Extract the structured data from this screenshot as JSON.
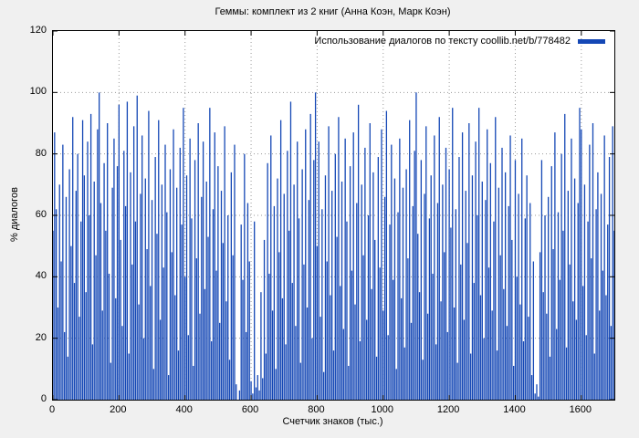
{
  "colors": {
    "bar": "#1447b5",
    "background": "#f0f0f0",
    "plot_background": "#ffffff",
    "grid": "#999999",
    "axis": "#000000"
  },
  "chart_data": {
    "type": "bar",
    "title": "Геммы: комплект из 2 книг (Анна Коэн, Марк Коэн)",
    "legend": "Использование диалогов по тексту coollib.net/b/778482",
    "legend_position": "top-right",
    "xlabel": "Счетчик знаков (тыс.)",
    "ylabel": "% диалогов",
    "xlim": [
      0,
      1700
    ],
    "ylim": [
      0,
      120
    ],
    "x_ticks": [
      0,
      200,
      400,
      600,
      800,
      1000,
      1200,
      1400,
      1600
    ],
    "y_ticks": [
      0,
      20,
      40,
      60,
      80,
      100,
      120
    ],
    "grid": true,
    "x_start": 0,
    "x_step": 5,
    "values": [
      55,
      87,
      62,
      30,
      70,
      45,
      83,
      22,
      66,
      14,
      75,
      50,
      92,
      38,
      68,
      80,
      27,
      58,
      91,
      73,
      35,
      84,
      60,
      93,
      18,
      71,
      47,
      88,
      100,
      64,
      29,
      77,
      55,
      90,
      41,
      12,
      69,
      85,
      33,
      76,
      96,
      52,
      24,
      81,
      63,
      97,
      15,
      74,
      44,
      89,
      58,
      99,
      31,
      67,
      86,
      20,
      72,
      49,
      94,
      37,
      65,
      10,
      79,
      54,
      91,
      26,
      70,
      43,
      83,
      61,
      8,
      75,
      48,
      88,
      34,
      69,
      16,
      82,
      57,
      95,
      40,
      73,
      21,
      85,
      59,
      11,
      78,
      46,
      90,
      28,
      66,
      84,
      36,
      71,
      53,
      95,
      19,
      62,
      87,
      42,
      76,
      25,
      68,
      51,
      89,
      32,
      60,
      13,
      74,
      47,
      83,
      5,
      0,
      3,
      57,
      39,
      80,
      22,
      64,
      45,
      6,
      2,
      58,
      4,
      8,
      3,
      35,
      7,
      52,
      15,
      77,
      41,
      86,
      29,
      63,
      10,
      72,
      48,
      91,
      33,
      67,
      18,
      81,
      55,
      97,
      38,
      70,
      24,
      84,
      59,
      12,
      75,
      44,
      88,
      30,
      65,
      93,
      20,
      78,
      100,
      50,
      84,
      27,
      62,
      9,
      73,
      45,
      89,
      34,
      68,
      16,
      80,
      53,
      92,
      37,
      71,
      23,
      85,
      58,
      11,
      76,
      42,
      87,
      31,
      64,
      96,
      19,
      70,
      47,
      82,
      26,
      60,
      90,
      36,
      74,
      52,
      14,
      79,
      43,
      88,
      29,
      66,
      94,
      21,
      57,
      83,
      39,
      72,
      10,
      61,
      85,
      33,
      69,
      17,
      75,
      46,
      91,
      25,
      63,
      81,
      100,
      54,
      35,
      78,
      13,
      67,
      89,
      28,
      59,
      73,
      41,
      86,
      18,
      64,
      92,
      32,
      70,
      48,
      82,
      22,
      75,
      56,
      95,
      30,
      62,
      12,
      79,
      44,
      87,
      26,
      68,
      51,
      90,
      15,
      73,
      38,
      84,
      60,
      95,
      34,
      71,
      20,
      65,
      88,
      43,
      77,
      29,
      58,
      92,
      16,
      69,
      47,
      82,
      36,
      74,
      24,
      63,
      86,
      52,
      11,
      78,
      40,
      67,
      31,
      85,
      19,
      59,
      73,
      27,
      64,
      8,
      45,
      2,
      5,
      1,
      48,
      78,
      35,
      60,
      28,
      66,
      14,
      76,
      49,
      87,
      23,
      61,
      39,
      80,
      55,
      93,
      17,
      68,
      44,
      85,
      32,
      72,
      26,
      64,
      95,
      88,
      37,
      70,
      21,
      58,
      83,
      46,
      90,
      15,
      62,
      74,
      29,
      67,
      42,
      86,
      34,
      57,
      79,
      24,
      89,
      55
    ]
  }
}
